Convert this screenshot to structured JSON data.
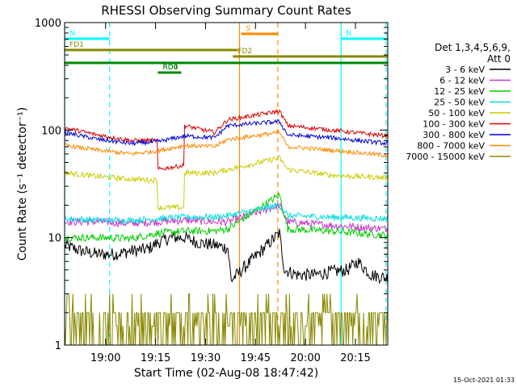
{
  "chart_data": {
    "type": "line",
    "title": "RHESSI Observing Summary Count Rates",
    "xlabel": "Start Time (02-Aug-08 18:47:42)",
    "ylabel": "Count Rate (s⁻¹ detector⁻¹)",
    "x_ticks": [
      "19:00",
      "19:15",
      "19:30",
      "19:45",
      "20:00",
      "20:15"
    ],
    "y_ticks": [
      "1",
      "10",
      "100",
      "1000"
    ],
    "y_scale": "log",
    "ylim": [
      1,
      1000
    ],
    "x_range_minutes_after_18_47_42": [
      0,
      97
    ],
    "grid": false,
    "legend_position": "right",
    "detectors": "Det 1,3,4,5,6,9,",
    "attenuator": "Att 0",
    "timestamp": "15-Oct-2021 01:33",
    "data_gap": {
      "start_min": 50.5,
      "end_min": 64.5
    },
    "series": [
      {
        "name": "3 - 6 keV",
        "color": "#000000",
        "noise": 0.06,
        "points": [
          [
            0,
            8.5
          ],
          [
            5,
            7.5
          ],
          [
            10,
            7
          ],
          [
            15,
            7
          ],
          [
            20,
            7.5
          ],
          [
            25,
            7.8
          ],
          [
            28,
            9
          ],
          [
            32,
            10
          ],
          [
            36,
            10
          ],
          [
            40,
            9
          ],
          [
            45,
            8.5
          ],
          [
            49,
            8
          ],
          [
            50,
            4
          ],
          [
            64.5,
            11
          ],
          [
            66,
            5
          ],
          [
            70,
            4.5
          ],
          [
            75,
            4.5
          ],
          [
            80,
            4.8
          ],
          [
            85,
            5
          ],
          [
            88,
            6
          ],
          [
            92,
            4.5
          ],
          [
            97,
            4.2
          ]
        ]
      },
      {
        "name": "6 - 12 keV",
        "color": "#cc33cc",
        "noise": 0.035,
        "points": [
          [
            0,
            14
          ],
          [
            10,
            14
          ],
          [
            20,
            13.5
          ],
          [
            28,
            14
          ],
          [
            36,
            14.5
          ],
          [
            45,
            14
          ],
          [
            49,
            14
          ],
          [
            64.5,
            20
          ],
          [
            67,
            14
          ],
          [
            80,
            13
          ],
          [
            97,
            12
          ]
        ]
      },
      {
        "name": "12 - 25 keV",
        "color": "#00cc00",
        "noise": 0.035,
        "points": [
          [
            0,
            10
          ],
          [
            10,
            10
          ],
          [
            20,
            9.8
          ],
          [
            28,
            11
          ],
          [
            36,
            11.5
          ],
          [
            45,
            11.5
          ],
          [
            49,
            12
          ],
          [
            64.5,
            25
          ],
          [
            67,
            12
          ],
          [
            80,
            11.5
          ],
          [
            97,
            10.5
          ]
        ]
      },
      {
        "name": "25 - 50 keV",
        "color": "#00dddd",
        "noise": 0.03,
        "points": [
          [
            0,
            15
          ],
          [
            10,
            14.5
          ],
          [
            20,
            14.5
          ],
          [
            28,
            15
          ],
          [
            36,
            15.5
          ],
          [
            45,
            15.5
          ],
          [
            49,
            16
          ],
          [
            64.5,
            20
          ],
          [
            67,
            16
          ],
          [
            80,
            15.5
          ],
          [
            97,
            15
          ]
        ]
      },
      {
        "name": "50 - 100 keV",
        "color": "#cccc00",
        "noise": 0.025,
        "points": [
          [
            0,
            40
          ],
          [
            10,
            37
          ],
          [
            20,
            35
          ],
          [
            27.9,
            34
          ],
          [
            28,
            19
          ],
          [
            35.9,
            19
          ],
          [
            36,
            40
          ],
          [
            45,
            40
          ],
          [
            49,
            43
          ],
          [
            64.5,
            55
          ],
          [
            67,
            43
          ],
          [
            80,
            38
          ],
          [
            97,
            36
          ]
        ]
      },
      {
        "name": "100 - 300 keV",
        "color": "#dd0000",
        "noise": 0.02,
        "points": [
          [
            0,
            105
          ],
          [
            10,
            90
          ],
          [
            20,
            80
          ],
          [
            27.9,
            80
          ],
          [
            28,
            43
          ],
          [
            35.9,
            47
          ],
          [
            36,
            110
          ],
          [
            45,
            95
          ],
          [
            49,
            125
          ],
          [
            64.5,
            150
          ],
          [
            67,
            110
          ],
          [
            80,
            100
          ],
          [
            97,
            88
          ]
        ]
      },
      {
        "name": "300 - 800 keV",
        "color": "#0000dd",
        "noise": 0.02,
        "points": [
          [
            0,
            95
          ],
          [
            10,
            82
          ],
          [
            20,
            75
          ],
          [
            28,
            78
          ],
          [
            36,
            88
          ],
          [
            45,
            85
          ],
          [
            49,
            110
          ],
          [
            64.5,
            120
          ],
          [
            67,
            90
          ],
          [
            80,
            85
          ],
          [
            97,
            75
          ]
        ]
      },
      {
        "name": "800 - 7000 keV",
        "color": "#ff8800",
        "noise": 0.02,
        "points": [
          [
            0,
            72
          ],
          [
            10,
            65
          ],
          [
            20,
            60
          ],
          [
            28,
            64
          ],
          [
            36,
            72
          ],
          [
            45,
            70
          ],
          [
            49,
            82
          ],
          [
            64.5,
            95
          ],
          [
            67,
            70
          ],
          [
            80,
            65
          ],
          [
            97,
            58
          ]
        ]
      },
      {
        "name": "7000 - 15000 keV",
        "color": "#888800",
        "noise": 0.0,
        "points": [
          [
            0,
            1.5
          ],
          [
            97,
            1.5
          ]
        ]
      }
    ],
    "annotations": [
      {
        "label": "N",
        "color": "#00ffff",
        "start": 0,
        "end": 13.5,
        "y_frac": 0.05
      },
      {
        "label": "N",
        "color": "#00ffff",
        "start": 83,
        "end": 97,
        "y_frac": 0.05
      },
      {
        "label": "S",
        "color": "#ff8800",
        "start": 53,
        "end": 64,
        "y_frac": 0.035
      },
      {
        "label": "FD1",
        "color": "#888800",
        "start": 0,
        "end": 52,
        "y_frac": 0.085
      },
      {
        "label": "FD2",
        "color": "#888800",
        "start": 50.5,
        "end": 97,
        "y_frac": 0.105
      },
      {
        "label": "",
        "color": "#008800",
        "start": 0,
        "end": 97,
        "y_frac": 0.125
      },
      {
        "label": "RD0",
        "color": "#008800",
        "start": 28,
        "end": 35,
        "y_frac": 0.155
      },
      {
        "label": "RD4",
        "color": "#008800",
        "start": 28,
        "end": 35,
        "y_frac": 0.155
      }
    ],
    "vertical_markers": [
      {
        "color": "#00ffff",
        "min": 0,
        "dash": false
      },
      {
        "color": "#00ffff",
        "min": 13.5,
        "dash": true
      },
      {
        "color": "#ff8800",
        "min": 52.5,
        "dash": false
      },
      {
        "color": "#ff8800",
        "min": 64,
        "dash": true
      },
      {
        "color": "#00ffff",
        "min": 83,
        "dash": false
      },
      {
        "color": "#00ffff",
        "min": 96.5,
        "dash": true
      }
    ]
  }
}
